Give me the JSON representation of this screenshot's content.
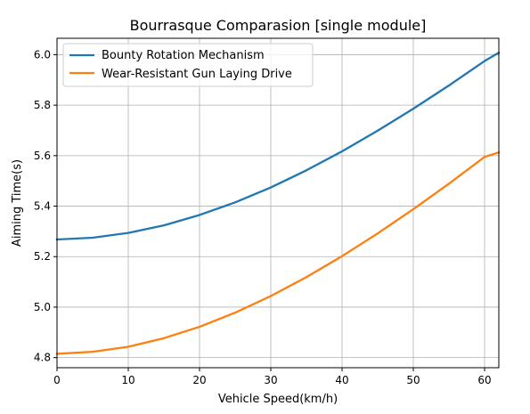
{
  "chart_data": {
    "type": "line",
    "title": "Bourrasque Comparasion [single module]",
    "xlabel": "Vehicle Speed(km/h)",
    "ylabel": "Aiming Time(s)",
    "xlim": [
      0,
      62
    ],
    "ylim": [
      4.76,
      6.065
    ],
    "xticks": [
      0,
      10,
      20,
      30,
      40,
      50,
      60
    ],
    "yticks": [
      4.8,
      5.0,
      5.2,
      5.4,
      5.6,
      5.8,
      6.0
    ],
    "grid": true,
    "legend_position": "upper-left",
    "series": [
      {
        "name": "Bounty Rotation Mechanism",
        "color": "#1f77b4",
        "x": [
          0,
          5,
          10,
          15,
          20,
          25,
          30,
          35,
          40,
          45,
          50,
          55,
          60,
          62
        ],
        "y": [
          5.268,
          5.275,
          5.294,
          5.324,
          5.365,
          5.415,
          5.474,
          5.542,
          5.617,
          5.699,
          5.786,
          5.878,
          5.975,
          6.008
        ]
      },
      {
        "name": "Wear-Resistant Gun Laying Drive",
        "color": "#ff7f0e",
        "x": [
          0,
          5,
          10,
          15,
          20,
          25,
          30,
          35,
          40,
          45,
          50,
          55,
          60,
          62
        ],
        "y": [
          4.815,
          4.823,
          4.843,
          4.877,
          4.922,
          4.978,
          5.044,
          5.119,
          5.202,
          5.292,
          5.388,
          5.489,
          5.595,
          5.613
        ]
      }
    ]
  }
}
